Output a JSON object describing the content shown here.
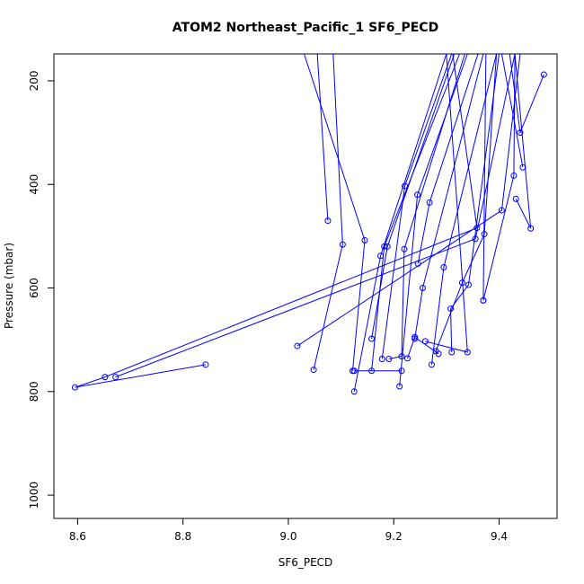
{
  "chart_data": {
    "type": "line",
    "title": "ATOM2 Northeast_Pacific_1 SF6_PECD",
    "xlabel": "SF6_PECD",
    "ylabel": "Pressure (mbar)",
    "xlim": [
      8.555,
      9.51
    ],
    "ylim": [
      1045,
      148
    ],
    "y_reversed": true,
    "x_ticks": [
      8.6,
      8.8,
      9.0,
      9.2,
      9.4
    ],
    "x_tick_labels": [
      "8.6",
      "8.8",
      "9.0",
      "9.2",
      "9.4"
    ],
    "y_ticks": [
      200,
      400,
      600,
      800,
      1000
    ],
    "y_tick_labels": [
      "200",
      "400",
      "600",
      "800",
      "1000"
    ],
    "grid": false,
    "legend": "none",
    "colors": {
      "series": "#0000ff",
      "axis": "#000000"
    },
    "series": [
      {
        "points": [
          {
            "x": 8.843,
            "y": 748
          },
          {
            "x": 8.595,
            "y": 792
          },
          {
            "x": 8.652,
            "y": 772
          },
          {
            "x": 9.358,
            "y": 484
          },
          {
            "x": 9.312,
            "y": 148
          }
        ]
      },
      {
        "points": [
          {
            "x": 8.672,
            "y": 772
          },
          {
            "x": 9.355,
            "y": 505
          },
          {
            "x": 9.43,
            "y": 148
          }
        ]
      },
      {
        "points": [
          {
            "x": 9.017,
            "y": 712
          },
          {
            "x": 9.405,
            "y": 450
          },
          {
            "x": 9.44,
            "y": 148
          }
        ]
      },
      {
        "points": [
          {
            "x": 9.048,
            "y": 758
          },
          {
            "x": 9.103,
            "y": 516
          },
          {
            "x": 9.085,
            "y": 148
          }
        ]
      },
      {
        "points": [
          {
            "x": 9.075,
            "y": 470
          },
          {
            "x": 9.055,
            "y": 148
          }
        ]
      },
      {
        "points": [
          {
            "x": 9.122,
            "y": 760
          },
          {
            "x": 9.145,
            "y": 508
          },
          {
            "x": 9.03,
            "y": 148
          }
        ]
      },
      {
        "points": [
          {
            "x": 9.125,
            "y": 760
          },
          {
            "x": 9.215,
            "y": 760
          }
        ]
      },
      {
        "points": [
          {
            "x": 9.125,
            "y": 800
          },
          {
            "x": 9.175,
            "y": 538
          },
          {
            "x": 9.3,
            "y": 148
          }
        ]
      },
      {
        "points": [
          {
            "x": 9.158,
            "y": 760
          },
          {
            "x": 9.182,
            "y": 520
          },
          {
            "x": 9.325,
            "y": 148
          }
        ]
      },
      {
        "points": [
          {
            "x": 9.158,
            "y": 698
          },
          {
            "x": 9.188,
            "y": 520
          },
          {
            "x": 9.315,
            "y": 148
          }
        ]
      },
      {
        "points": [
          {
            "x": 9.178,
            "y": 737
          },
          {
            "x": 9.221,
            "y": 403
          },
          {
            "x": 9.31,
            "y": 148
          }
        ]
      },
      {
        "points": [
          {
            "x": 9.191,
            "y": 737
          },
          {
            "x": 9.215,
            "y": 732
          },
          {
            "x": 9.22,
            "y": 525
          },
          {
            "x": 9.335,
            "y": 148
          }
        ]
      },
      {
        "points": [
          {
            "x": 9.211,
            "y": 790
          },
          {
            "x": 9.245,
            "y": 420
          },
          {
            "x": 9.34,
            "y": 148
          }
        ]
      },
      {
        "points": [
          {
            "x": 9.226,
            "y": 736
          },
          {
            "x": 9.24,
            "y": 695
          },
          {
            "x": 9.285,
            "y": 727
          }
        ]
      },
      {
        "points": [
          {
            "x": 9.246,
            "y": 553
          },
          {
            "x": 9.268,
            "y": 435
          },
          {
            "x": 9.36,
            "y": 148
          }
        ]
      },
      {
        "points": [
          {
            "x": 9.26,
            "y": 703
          },
          {
            "x": 9.34,
            "y": 724
          },
          {
            "x": 9.3,
            "y": 148
          }
        ]
      },
      {
        "points": [
          {
            "x": 9.272,
            "y": 748
          },
          {
            "x": 9.295,
            "y": 560
          },
          {
            "x": 9.395,
            "y": 148
          }
        ]
      },
      {
        "points": [
          {
            "x": 9.28,
            "y": 722
          },
          {
            "x": 9.33,
            "y": 590
          },
          {
            "x": 9.372,
            "y": 496
          },
          {
            "x": 9.395,
            "y": 148
          }
        ]
      },
      {
        "points": [
          {
            "x": 9.31,
            "y": 724
          },
          {
            "x": 9.308,
            "y": 640
          },
          {
            "x": 9.342,
            "y": 594
          },
          {
            "x": 9.4,
            "y": 148
          }
        ]
      },
      {
        "points": [
          {
            "x": 9.37,
            "y": 624
          },
          {
            "x": 9.428,
            "y": 383
          },
          {
            "x": 9.43,
            "y": 148
          }
        ]
      },
      {
        "points": [
          {
            "x": 9.432,
            "y": 428
          },
          {
            "x": 9.46,
            "y": 485
          },
          {
            "x": 9.43,
            "y": 148
          }
        ]
      },
      {
        "points": [
          {
            "x": 9.445,
            "y": 367
          },
          {
            "x": 9.405,
            "y": 148
          }
        ]
      },
      {
        "points": [
          {
            "x": 9.485,
            "y": 188
          },
          {
            "x": 9.44,
            "y": 300
          },
          {
            "x": 9.42,
            "y": 148
          }
        ]
      },
      {
        "points": [
          {
            "x": 9.24,
            "y": 698
          },
          {
            "x": 9.255,
            "y": 600
          },
          {
            "x": 9.37,
            "y": 148
          }
        ]
      },
      {
        "points": [
          {
            "x": 9.37,
            "y": 624
          },
          {
            "x": 9.375,
            "y": 148
          }
        ]
      }
    ]
  }
}
